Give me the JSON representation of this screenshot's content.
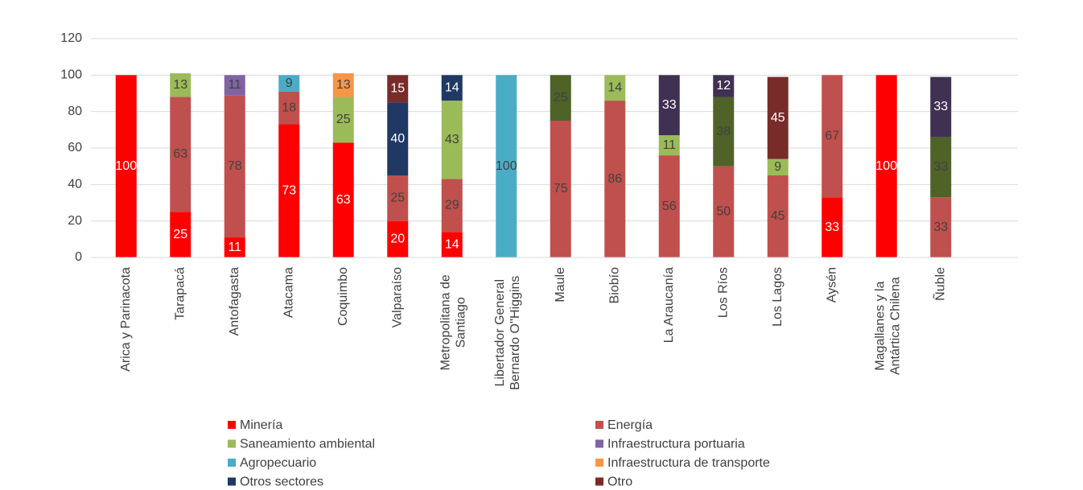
{
  "chart_data": {
    "type": "stacked_bar",
    "categories": [
      "Arica y Parinacota",
      "Tarapacá",
      "Antofagasta",
      "Atacama",
      "Coquimbo",
      "Valparaíso",
      "Metropolitana de Santiago",
      "Libertador General Bernardo O''Higgins",
      "Maule",
      "Biobío",
      "La Araucanía",
      "Los Ríos",
      "Los Lagos",
      "Aysén",
      "Magallanes y la Antártica Chilena",
      "Ñuble"
    ],
    "series": [
      {
        "name": "Minería",
        "color": "#ff0000",
        "values": [
          100,
          25,
          11,
          73,
          63,
          20,
          14,
          null,
          null,
          null,
          null,
          null,
          null,
          33,
          100,
          null
        ]
      },
      {
        "name": "Energía",
        "color": "#c0504d",
        "values": [
          null,
          63,
          78,
          18,
          null,
          25,
          29,
          null,
          75,
          86,
          56,
          50,
          45,
          67,
          null,
          33
        ]
      },
      {
        "name": "Saneamiento ambiental",
        "color": "#9bbb59",
        "values": [
          null,
          13,
          null,
          null,
          25,
          null,
          43,
          null,
          null,
          14,
          11,
          null,
          9,
          null,
          null,
          null
        ]
      },
      {
        "name": "Infraestructura portuaria",
        "color": "#8064a2",
        "values": [
          null,
          null,
          11,
          null,
          null,
          null,
          null,
          null,
          null,
          null,
          null,
          null,
          null,
          null,
          null,
          null
        ]
      },
      {
        "name": "Agropecuario",
        "color": "#4bacc6",
        "values": [
          null,
          null,
          null,
          9,
          null,
          null,
          null,
          100,
          null,
          null,
          null,
          null,
          null,
          null,
          null,
          null
        ]
      },
      {
        "name": "Infraestructura de transporte",
        "color": "#f79646",
        "values": [
          null,
          null,
          null,
          null,
          13,
          null,
          null,
          null,
          null,
          null,
          null,
          null,
          null,
          null,
          null,
          null
        ]
      },
      {
        "name": "Otros sectores",
        "color": "#1f3864",
        "values": [
          null,
          null,
          null,
          null,
          null,
          40,
          14,
          null,
          null,
          null,
          null,
          null,
          null,
          null,
          null,
          null
        ]
      },
      {
        "name": "Otro",
        "color": "#772c2a",
        "values": [
          null,
          null,
          null,
          null,
          null,
          15,
          null,
          null,
          null,
          null,
          null,
          null,
          45,
          null,
          null,
          null
        ]
      },
      {
        "color": "#4f6228",
        "values": [
          null,
          null,
          null,
          null,
          null,
          null,
          null,
          null,
          25,
          null,
          null,
          38,
          null,
          null,
          null,
          33
        ]
      },
      {
        "color": "#403152",
        "values": [
          null,
          null,
          null,
          null,
          null,
          null,
          null,
          null,
          null,
          null,
          33,
          12,
          null,
          null,
          null,
          33
        ]
      }
    ],
    "ylim": [
      0,
      120
    ],
    "yticks": [
      0,
      20,
      40,
      60,
      80,
      100,
      120
    ],
    "grid": true
  }
}
